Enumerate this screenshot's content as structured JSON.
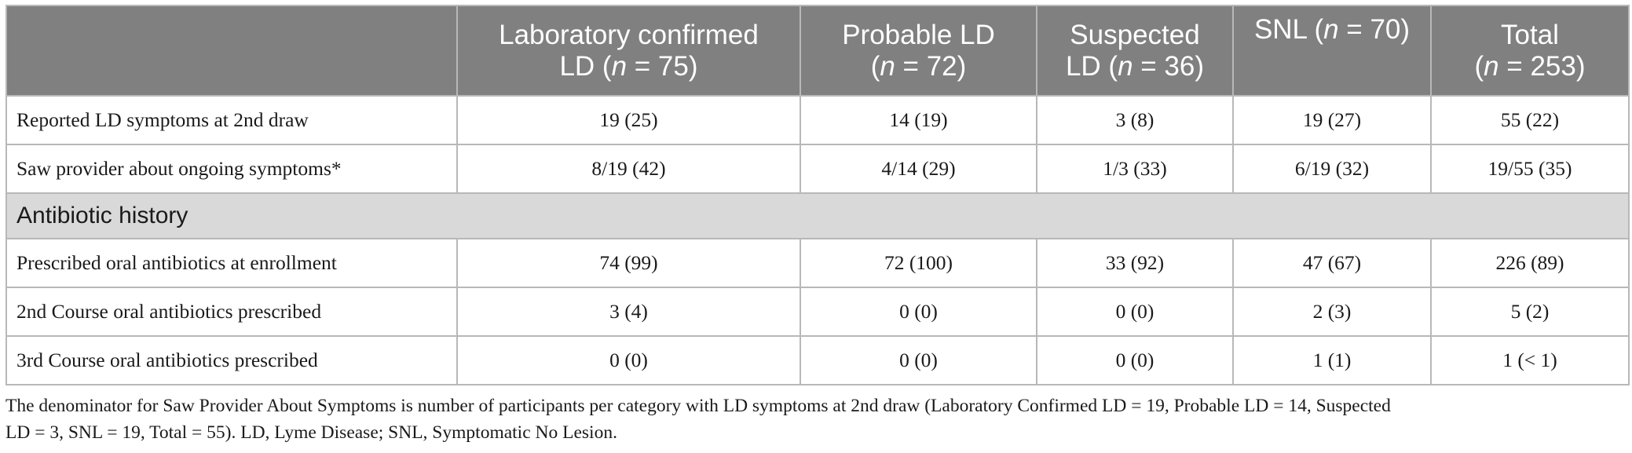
{
  "table": {
    "header": {
      "col0": "",
      "col1": {
        "line1": "Laboratory confirmed",
        "line2_pre": "LD (",
        "n": "n",
        "line2_post": " = 75)"
      },
      "col2": {
        "line1": "Probable LD",
        "pre": "(",
        "n": "n",
        "post": " = 72)"
      },
      "col3": {
        "line1": "Suspected",
        "line2_pre": "LD (",
        "n": "n",
        "line2_post": " = 36)"
      },
      "col4": {
        "pre": "SNL (",
        "n": "n",
        "post": " = 70)"
      },
      "col5": {
        "line1": "Total",
        "pre": "(",
        "n": "n",
        "post": " = 253)"
      }
    },
    "rows": [
      {
        "label": "Reported LD symptoms at 2nd draw",
        "values": [
          "19 (25)",
          "14 (19)",
          "3 (8)",
          "19 (27)",
          "55 (22)"
        ]
      },
      {
        "label": "Saw provider about ongoing symptoms*",
        "values": [
          "8/19 (42)",
          "4/14 (29)",
          "1/3 (33)",
          "6/19 (32)",
          "19/55 (35)"
        ]
      }
    ],
    "section": "Antibiotic history",
    "rows2": [
      {
        "label": "Prescribed oral antibiotics at enrollment",
        "values": [
          "74 (99)",
          "72 (100)",
          "33 (92)",
          "47 (67)",
          "226 (89)"
        ]
      },
      {
        "label": "2nd Course oral antibiotics prescribed",
        "values": [
          "3 (4)",
          "0 (0)",
          "0 (0)",
          "2 (3)",
          "5 (2)"
        ]
      },
      {
        "label": "3rd Course oral antibiotics prescribed",
        "values": [
          "0 (0)",
          "0 (0)",
          "0 (0)",
          "1 (1)",
          "1 (< 1)"
        ]
      }
    ]
  },
  "footnote": {
    "line1": "The denominator for Saw Provider About Symptoms is number of participants per category with LD symptoms at 2nd draw (Laboratory Confirmed LD = 19, Probable LD = 14, Suspected",
    "line2": "LD = 3, SNL = 19, Total = 55). LD, Lyme Disease; SNL, Symptomatic No Lesion."
  }
}
